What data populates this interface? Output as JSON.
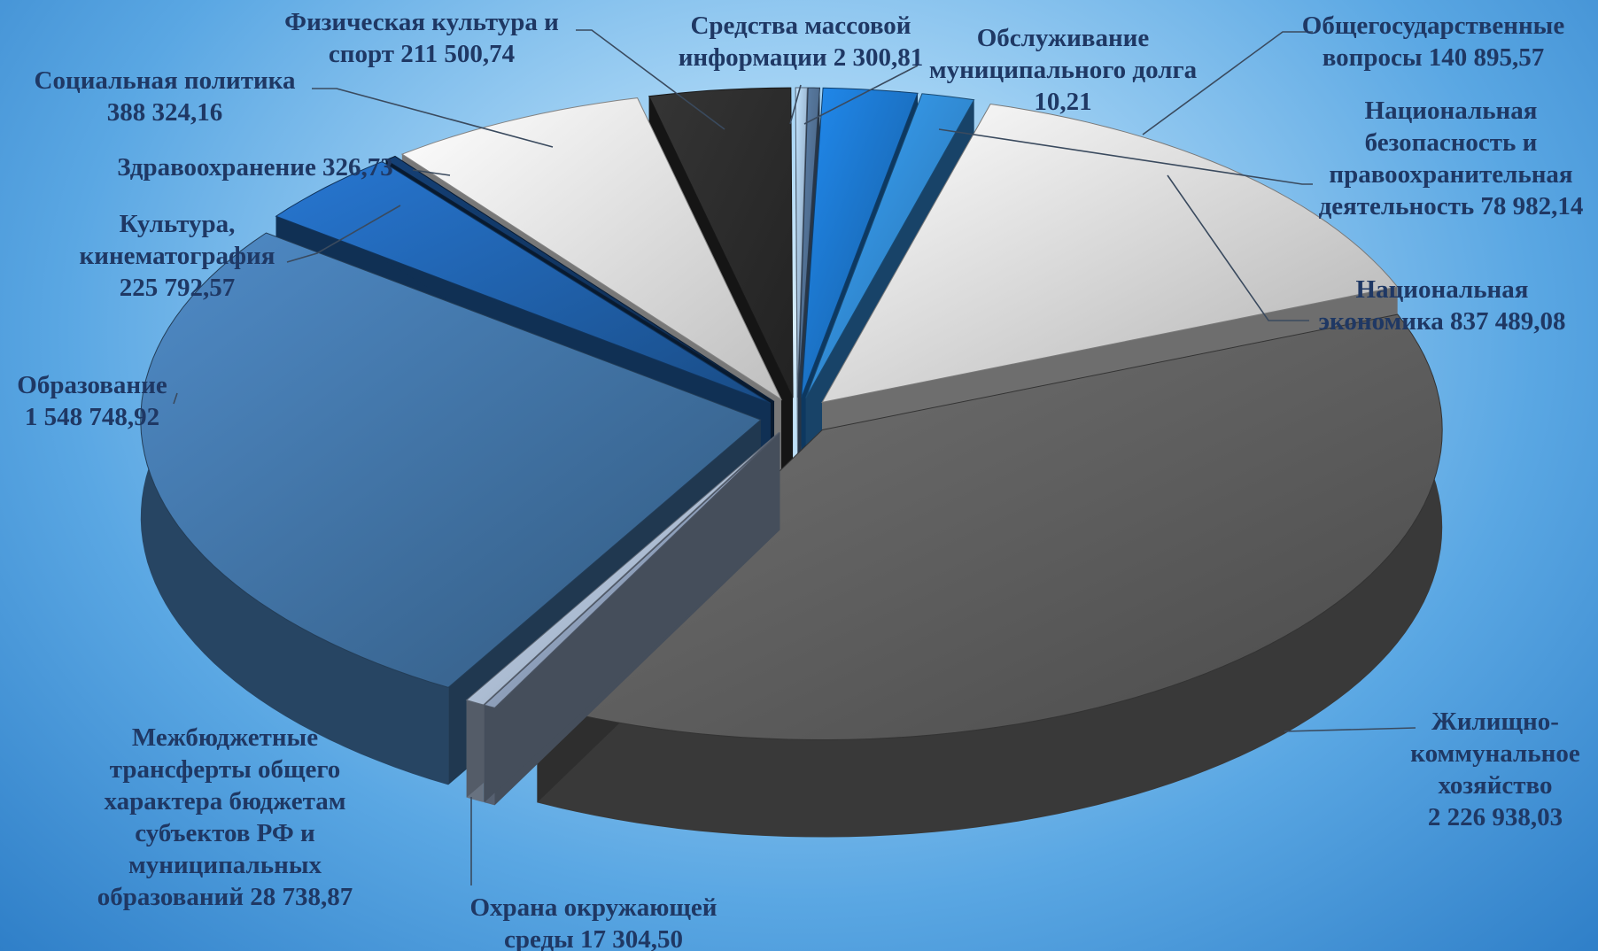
{
  "chart_data": {
    "type": "pie",
    "style": "3d-exploded",
    "slices": [
      {
        "name": "Общегосударственные вопросы",
        "value": 140895.57,
        "color": "#1a6fc0",
        "label_lines": [
          "Общегосударственные",
          "вопросы 140 895,57"
        ]
      },
      {
        "name": "Национальная безопасность и правоохранительная деятельность",
        "value": 78982.14,
        "color": "#2f86d0",
        "label_lines": [
          "Национальная",
          "безопасность и",
          "правоохранительная",
          "деятельность 78 982,14"
        ]
      },
      {
        "name": "Национальная экономика",
        "value": 837489.08,
        "color": "#dcdcdc",
        "label_lines": [
          "Национальная",
          "экономика 837 489,08"
        ]
      },
      {
        "name": "Жилищно-коммунальное хозяйство",
        "value": 2226938.03,
        "color": "#5c5c5c",
        "label_lines": [
          "Жилищно-",
          "коммунальное",
          "хозяйство",
          "2 226 938,03"
        ]
      },
      {
        "name": "Охрана окружающей среды",
        "value": 17304.5,
        "color": "#8a9bb5",
        "label_lines": [
          "Охрана окружающей",
          "среды 17 304,50"
        ]
      },
      {
        "name": "Межбюджетные трансферты общего характера бюджетам субъектов РФ и муниципальных образований",
        "value": 28738.87,
        "color": "#a8b8cf",
        "label_lines": [
          "Межбюджетные",
          "трансферты общего",
          "характера бюджетам",
          "субъектов РФ и",
          "муниципальных",
          "образований 28 738,87"
        ]
      },
      {
        "name": "Образование",
        "value": 1548748.92,
        "color": "#3f6f9f",
        "label_lines": [
          "Образование",
          "1 548 748,92"
        ]
      },
      {
        "name": "Культура, кинематография",
        "value": 225792.57,
        "color": "#1f5fa8",
        "label_lines": [
          "Культура,",
          "кинематография",
          "225 792,57"
        ]
      },
      {
        "name": "Здравоохранение",
        "value": 326.73,
        "color": "#10335e",
        "label_lines": [
          "Здравоохранение 326,73"
        ]
      },
      {
        "name": "Социальная политика",
        "value": 388324.16,
        "color": "#efefef",
        "label_lines": [
          "Социальная политика",
          "388 324,16"
        ]
      },
      {
        "name": "Физическая культура и спорт",
        "value": 211500.74,
        "color": "#2a2a2a",
        "label_lines": [
          "Физическая культура и",
          "спорт 211 500,74"
        ]
      },
      {
        "name": "Средства массовой информации",
        "value": 2300.81,
        "color": "#9bb6d6",
        "label_lines": [
          "Средства массовой",
          "информации 2 300,81"
        ]
      },
      {
        "name": "Обслуживание муниципального долга",
        "value": 10.21,
        "color": "#4d6a8c",
        "label_lines": [
          "Обслуживание",
          "муниципального долга",
          "10,21"
        ]
      }
    ]
  }
}
